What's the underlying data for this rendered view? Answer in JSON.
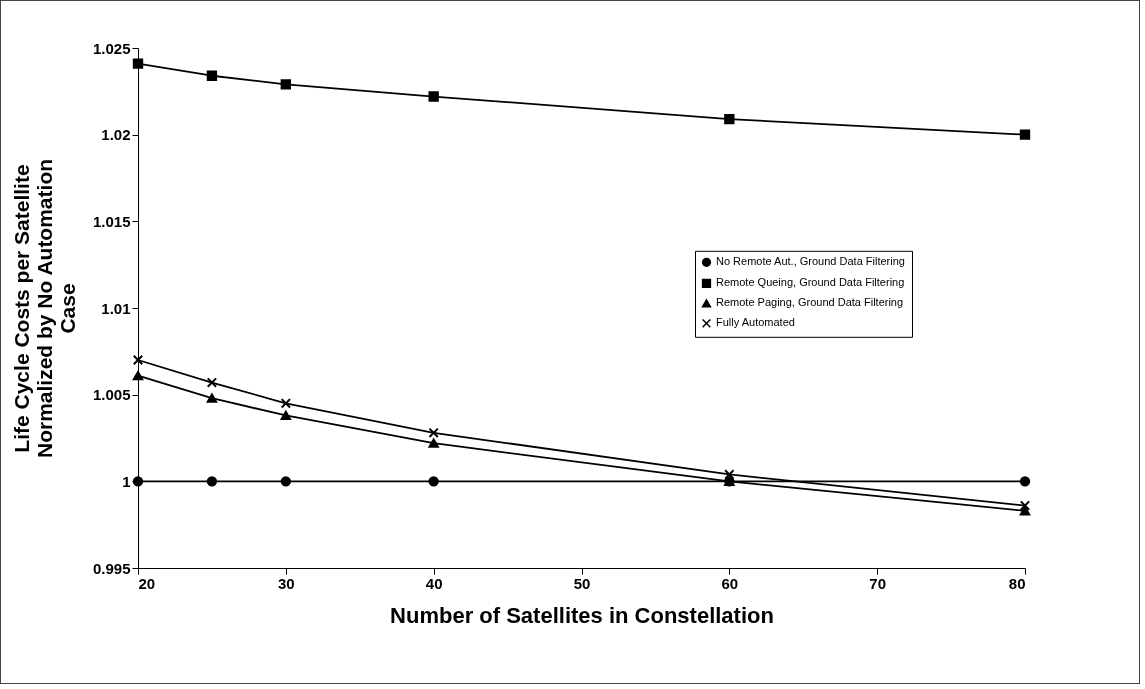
{
  "chart_data": {
    "type": "line",
    "xlabel": "Number of Satellites in Constellation",
    "ylabel": "Life Cycle Costs per Satellite Normalized by No Automation Case",
    "x": [
      20,
      25,
      30,
      40,
      60,
      80
    ],
    "xlim": [
      20,
      80
    ],
    "xticks": [
      20,
      30,
      40,
      50,
      60,
      70,
      80
    ],
    "ylim": [
      0.995,
      1.025
    ],
    "yticks": [
      0.995,
      1,
      1.005,
      1.01,
      1.015,
      1.02,
      1.025
    ],
    "grid": false,
    "legend": "right",
    "series": [
      {
        "name": "No Remote Aut., Ground Data Filtering",
        "color": "#000000",
        "marker": "circle",
        "values": [
          1,
          1,
          1,
          1,
          1,
          1
        ]
      },
      {
        "name": "Remote Queing, Ground Data Filtering",
        "color": "#000000",
        "marker": "square",
        "values": [
          1.0241,
          1.0234,
          1.0229,
          1.0222,
          1.0209,
          1.02
        ]
      },
      {
        "name": "Remote Paging, Ground Data Filtering",
        "color": "#000000",
        "marker": "triangle",
        "values": [
          1.0061,
          1.0048,
          1.0038,
          1.0022,
          1.0,
          0.9983
        ]
      },
      {
        "name": "Fully Automated",
        "color": "#000000",
        "marker": "cross",
        "values": [
          1.007,
          1.0057,
          1.0045,
          1.0028,
          1.0004,
          0.9986
        ]
      }
    ]
  }
}
